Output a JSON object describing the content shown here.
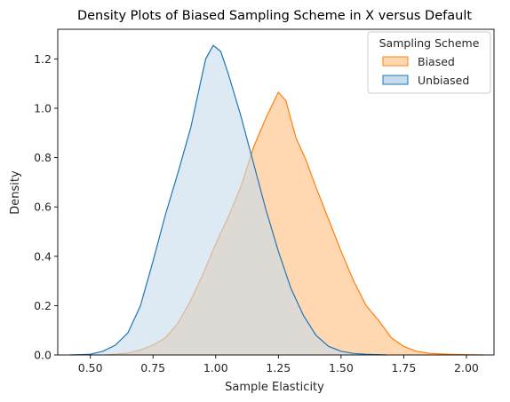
{
  "chart_data": {
    "type": "area",
    "title": "Density Plots of Biased Sampling Scheme in X versus Default",
    "xlabel": "Sample Elasticity",
    "ylabel": "Density",
    "xlim": [
      0.37,
      2.11
    ],
    "ylim": [
      0.0,
      1.32
    ],
    "xticks": [
      "0.50",
      "0.75",
      "1.00",
      "1.25",
      "1.50",
      "1.75",
      "2.00"
    ],
    "xtick_values": [
      0.5,
      0.75,
      1.0,
      1.25,
      1.5,
      1.75,
      2.0
    ],
    "yticks": [
      "0.0",
      "0.2",
      "0.4",
      "0.6",
      "0.8",
      "1.0",
      "1.2"
    ],
    "ytick_values": [
      0.0,
      0.2,
      0.4,
      0.6,
      0.8,
      1.0,
      1.2
    ],
    "grid": false,
    "legend": {
      "title": "Sampling Scheme",
      "position": "top-right"
    },
    "series": [
      {
        "name": "Biased",
        "line_color": "#ff7f0e",
        "fill_color": "#ffd8b2",
        "points": [
          [
            0.56,
            0.0
          ],
          [
            0.6,
            0.003
          ],
          [
            0.65,
            0.008
          ],
          [
            0.7,
            0.02
          ],
          [
            0.75,
            0.04
          ],
          [
            0.8,
            0.07
          ],
          [
            0.85,
            0.13
          ],
          [
            0.9,
            0.22
          ],
          [
            0.95,
            0.33
          ],
          [
            1.0,
            0.45
          ],
          [
            1.05,
            0.56
          ],
          [
            1.1,
            0.68
          ],
          [
            1.15,
            0.84
          ],
          [
            1.2,
            0.96
          ],
          [
            1.25,
            1.065
          ],
          [
            1.28,
            1.03
          ],
          [
            1.32,
            0.88
          ],
          [
            1.36,
            0.79
          ],
          [
            1.4,
            0.68
          ],
          [
            1.45,
            0.55
          ],
          [
            1.5,
            0.42
          ],
          [
            1.55,
            0.3
          ],
          [
            1.6,
            0.2
          ],
          [
            1.65,
            0.14
          ],
          [
            1.7,
            0.07
          ],
          [
            1.75,
            0.035
          ],
          [
            1.8,
            0.015
          ],
          [
            1.85,
            0.007
          ],
          [
            1.9,
            0.004
          ],
          [
            1.95,
            0.002
          ],
          [
            2.0,
            0.001
          ],
          [
            2.07,
            0.0
          ]
        ]
      },
      {
        "name": "Unbiased",
        "line_color": "#1f77b4",
        "fill_color": "#c6dced",
        "points": [
          [
            0.42,
            0.0
          ],
          [
            0.45,
            0.001
          ],
          [
            0.5,
            0.003
          ],
          [
            0.55,
            0.015
          ],
          [
            0.6,
            0.04
          ],
          [
            0.65,
            0.09
          ],
          [
            0.7,
            0.2
          ],
          [
            0.75,
            0.38
          ],
          [
            0.8,
            0.57
          ],
          [
            0.85,
            0.74
          ],
          [
            0.9,
            0.92
          ],
          [
            0.93,
            1.06
          ],
          [
            0.96,
            1.2
          ],
          [
            0.99,
            1.255
          ],
          [
            1.02,
            1.23
          ],
          [
            1.05,
            1.14
          ],
          [
            1.1,
            0.97
          ],
          [
            1.15,
            0.78
          ],
          [
            1.2,
            0.59
          ],
          [
            1.25,
            0.42
          ],
          [
            1.3,
            0.27
          ],
          [
            1.35,
            0.16
          ],
          [
            1.4,
            0.08
          ],
          [
            1.45,
            0.035
          ],
          [
            1.5,
            0.015
          ],
          [
            1.55,
            0.006
          ],
          [
            1.6,
            0.003
          ],
          [
            1.68,
            0.0
          ]
        ]
      }
    ]
  }
}
